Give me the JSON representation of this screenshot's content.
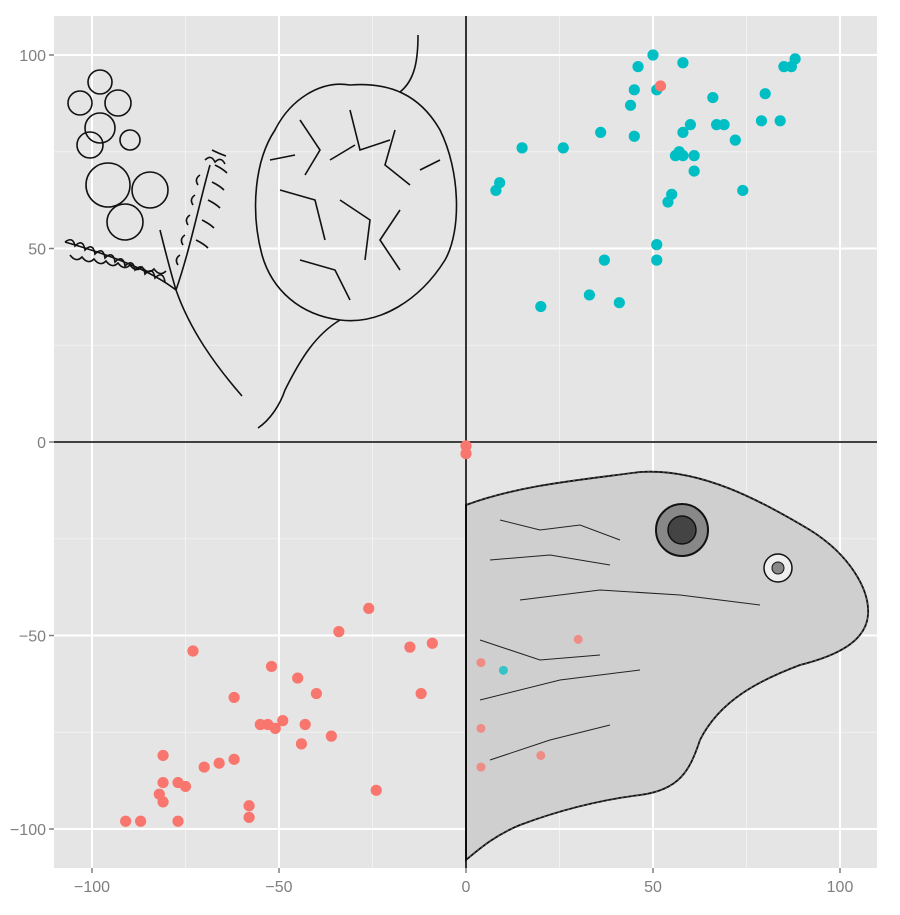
{
  "chart_data": {
    "type": "scatter",
    "title": "",
    "xlabel": "",
    "ylabel": "",
    "xlim": [
      -110,
      110
    ],
    "ylim": [
      -110,
      110
    ],
    "grid": true,
    "legend": null,
    "x_ticks": [
      -100,
      -50,
      0,
      50,
      100
    ],
    "y_ticks": [
      -100,
      -50,
      0,
      50,
      100
    ],
    "x_tick_labels": [
      "−100",
      "−50",
      "0",
      "50",
      "100"
    ],
    "y_tick_labels": [
      "−100",
      "−50",
      "0",
      "50",
      "100"
    ],
    "reference_lines": {
      "x": 0,
      "y": 0
    },
    "annotations": [
      {
        "name": "mimosa-branch-illustration",
        "quadrant": "top-left"
      },
      {
        "name": "pinecone-illustration",
        "quadrant": "top-left"
      },
      {
        "name": "lizard-head-illustration",
        "quadrant": "bottom-right"
      }
    ],
    "series": [
      {
        "name": "teal",
        "color": "#00BFC4",
        "points": [
          [
            8,
            65
          ],
          [
            9,
            67
          ],
          [
            15,
            76
          ],
          [
            26,
            76
          ],
          [
            36,
            80
          ],
          [
            45,
            79
          ],
          [
            44,
            87
          ],
          [
            45,
            91
          ],
          [
            46,
            97
          ],
          [
            50,
            100
          ],
          [
            51,
            91
          ],
          [
            58,
            98
          ],
          [
            66,
            89
          ],
          [
            60,
            82
          ],
          [
            58,
            80
          ],
          [
            67,
            82
          ],
          [
            69,
            82
          ],
          [
            72,
            78
          ],
          [
            56,
            74
          ],
          [
            57,
            75
          ],
          [
            58,
            74
          ],
          [
            61,
            74
          ],
          [
            61,
            70
          ],
          [
            74,
            65
          ],
          [
            55,
            64
          ],
          [
            54,
            62
          ],
          [
            51,
            51
          ],
          [
            51,
            47
          ],
          [
            37,
            47
          ],
          [
            33,
            38
          ],
          [
            41,
            36
          ],
          [
            20,
            35
          ],
          [
            80,
            90
          ],
          [
            79,
            83
          ],
          [
            84,
            83
          ],
          [
            85,
            97
          ],
          [
            87,
            97
          ],
          [
            88,
            99
          ],
          [
            10,
            -59
          ]
        ]
      },
      {
        "name": "red",
        "color": "#F8766D",
        "points": [
          [
            0,
            -1
          ],
          [
            0,
            -3
          ],
          [
            52,
            92
          ],
          [
            -73,
            -54
          ],
          [
            -26,
            -43
          ],
          [
            -34,
            -49
          ],
          [
            -15,
            -53
          ],
          [
            -9,
            -52
          ],
          [
            -52,
            -58
          ],
          [
            -45,
            -61
          ],
          [
            -40,
            -65
          ],
          [
            -12,
            -65
          ],
          [
            -62,
            -66
          ],
          [
            -55,
            -73
          ],
          [
            -53,
            -73
          ],
          [
            -51,
            -74
          ],
          [
            -49,
            -72
          ],
          [
            -43,
            -73
          ],
          [
            -44,
            -78
          ],
          [
            -36,
            -76
          ],
          [
            -81,
            -81
          ],
          [
            -70,
            -84
          ],
          [
            -66,
            -83
          ],
          [
            -62,
            -82
          ],
          [
            -81,
            -88
          ],
          [
            -77,
            -88
          ],
          [
            -75,
            -89
          ],
          [
            -82,
            -91
          ],
          [
            -81,
            -93
          ],
          [
            -24,
            -90
          ],
          [
            -58,
            -94
          ],
          [
            -58,
            -97
          ],
          [
            -91,
            -98
          ],
          [
            -87,
            -98
          ],
          [
            -77,
            -98
          ],
          [
            4,
            -57
          ],
          [
            30,
            -51
          ],
          [
            4,
            -74
          ],
          [
            20,
            -81
          ],
          [
            4,
            -84
          ]
        ]
      }
    ]
  },
  "style": {
    "panel_bg": "#e5e5e5",
    "grid_major": "#ffffff",
    "grid_minor": "#f2f2f2",
    "axis_text": "#7f7f7f",
    "zero_line": "#000000"
  }
}
